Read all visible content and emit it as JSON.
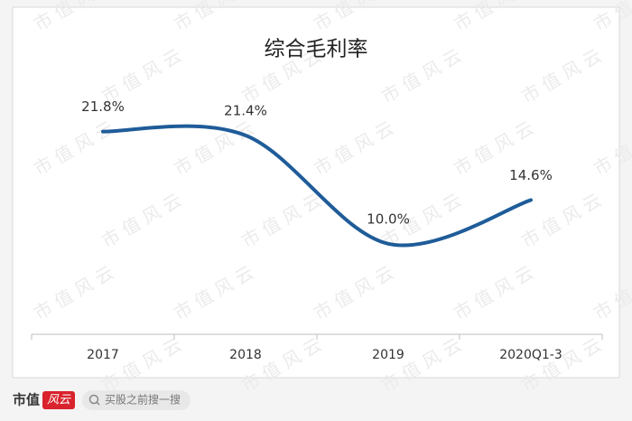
{
  "chart_data": {
    "type": "line",
    "title": "综合毛利率",
    "categories": [
      "2017",
      "2018",
      "2019",
      "2020Q1-3"
    ],
    "series": [
      {
        "color": "#1f5c99",
        "values": [
          21.8,
          21.4,
          10.0,
          14.6
        ],
        "value_labels": [
          "21.8%",
          "21.4%",
          "10.0%",
          "14.6%"
        ]
      }
    ],
    "ylim": [
      0,
      25
    ]
  },
  "watermark": "市值风云",
  "footer": {
    "brand": "市值",
    "brand_mark": "风云",
    "search": "买股之前搜一搜"
  }
}
